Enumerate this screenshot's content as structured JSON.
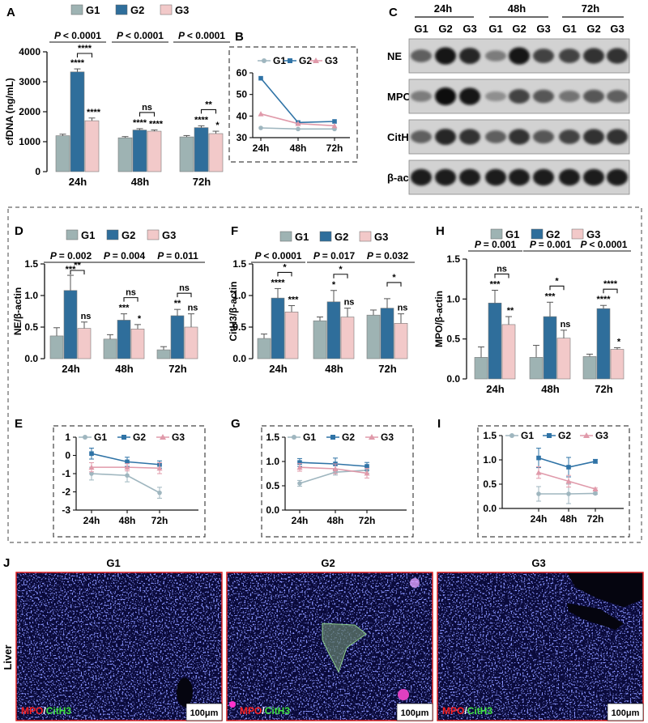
{
  "colors": {
    "G1": "#9eb3b3",
    "G2": "#2f6e9b",
    "G3": "#f2c9c9",
    "G1_line": "#9fb6bf",
    "G2_line": "#2f73a6",
    "G3_line": "#e09aaa",
    "err": "#555555"
  },
  "legend": [
    "G1",
    "G2",
    "G3"
  ],
  "panels": {
    "A": "A",
    "B": "B",
    "C": "C",
    "D": "D",
    "E": "E",
    "F": "F",
    "G": "G",
    "H": "H",
    "I": "I",
    "J": "J"
  },
  "western_blot": {
    "time_headers": [
      "24h",
      "48h",
      "72h"
    ],
    "lane_labels": [
      "G1",
      "G2",
      "G3",
      "G1",
      "G2",
      "G3",
      "G1",
      "G2",
      "G3"
    ],
    "proteins": [
      "NE",
      "MPO",
      "CitH3",
      "β-actin"
    ],
    "intensity": [
      [
        0.55,
        0.95,
        0.85,
        0.4,
        0.95,
        0.7,
        0.7,
        0.8,
        0.8
      ],
      [
        0.4,
        1.0,
        0.95,
        0.3,
        0.7,
        0.6,
        0.45,
        0.6,
        0.55
      ],
      [
        0.55,
        0.85,
        0.8,
        0.55,
        0.8,
        0.6,
        0.7,
        0.8,
        0.8
      ],
      [
        0.9,
        0.9,
        0.9,
        0.9,
        0.9,
        0.9,
        0.9,
        0.9,
        0.9
      ]
    ]
  },
  "micrographs": {
    "side_label": "Liver",
    "titles": [
      "G1",
      "G2",
      "G3"
    ],
    "stain_a": "MPO",
    "stain_sep": "/",
    "stain_b": "CitH3",
    "scale": "100μm"
  },
  "chart_data": [
    {
      "id": "A",
      "type": "bar",
      "ylabel": "cfDNA (ng/mL)",
      "categories": [
        "24h",
        "48h",
        "72h"
      ],
      "ylim": [
        0,
        4000
      ],
      "yticks": [
        0,
        1000,
        2000,
        3000,
        4000
      ],
      "yticklabels": [
        "0",
        "1000",
        "2000",
        "3000",
        "4000"
      ],
      "series": [
        {
          "name": "G1",
          "values": [
            1200,
            1130,
            1160
          ],
          "errors": [
            50,
            40,
            45
          ]
        },
        {
          "name": "G2",
          "values": [
            3330,
            1390,
            1470
          ],
          "errors": [
            100,
            45,
            60
          ]
        },
        {
          "name": "G3",
          "values": [
            1700,
            1350,
            1270
          ],
          "errors": [
            90,
            40,
            80
          ]
        }
      ],
      "pvalues": [
        "< 0.0001",
        "< 0.0001",
        "< 0.0001"
      ],
      "over_g2": [
        "****",
        "****",
        "****"
      ],
      "over_g3": [
        "****",
        "****",
        "*"
      ],
      "bracket": [
        "****",
        "ns",
        "**"
      ]
    },
    {
      "id": "B",
      "type": "line",
      "categories": [
        "24h",
        "48h",
        "72h"
      ],
      "ylim": [
        30,
        60
      ],
      "yticks": [
        30,
        40,
        50,
        60
      ],
      "yticklabels": [
        "30",
        "40",
        "50",
        "60"
      ],
      "series": [
        {
          "name": "G1",
          "values": [
            34.5,
            34,
            34
          ]
        },
        {
          "name": "G2",
          "values": [
            57.5,
            37,
            37.5
          ]
        },
        {
          "name": "G3",
          "values": [
            41,
            36.5,
            35.5
          ]
        }
      ]
    },
    {
      "id": "D",
      "type": "bar",
      "ylabel": "NE/β-actin",
      "categories": [
        "24h",
        "48h",
        "72h"
      ],
      "ylim": [
        0,
        1.5
      ],
      "yticks": [
        0,
        0.5,
        1.0,
        1.5
      ],
      "yticklabels": [
        "0.0",
        "0.5",
        "1.0",
        "1.5"
      ],
      "series": [
        {
          "name": "G1",
          "values": [
            0.36,
            0.31,
            0.14
          ],
          "errors": [
            0.13,
            0.07,
            0.05
          ]
        },
        {
          "name": "G2",
          "values": [
            1.08,
            0.61,
            0.68
          ],
          "errors": [
            0.24,
            0.1,
            0.1
          ]
        },
        {
          "name": "G3",
          "values": [
            0.48,
            0.47,
            0.5
          ],
          "errors": [
            0.1,
            0.07,
            0.21
          ]
        }
      ],
      "pvalues": [
        "= 0.002",
        "= 0.004",
        "= 0.011"
      ],
      "over_g2": [
        "***",
        "***",
        "**"
      ],
      "over_g3": [
        "ns",
        "*",
        "ns"
      ],
      "bracket": [
        "**",
        "ns",
        "ns"
      ]
    },
    {
      "id": "F",
      "type": "bar",
      "ylabel": "CitH3/β-actin",
      "categories": [
        "24h",
        "48h",
        "72h"
      ],
      "ylim": [
        0,
        1.5
      ],
      "yticks": [
        0,
        0.5,
        1.0,
        1.5
      ],
      "yticklabels": [
        "0.0",
        "0.5",
        "1.0",
        "1.5"
      ],
      "series": [
        {
          "name": "G1",
          "values": [
            0.32,
            0.6,
            0.69
          ],
          "errors": [
            0.07,
            0.06,
            0.08
          ]
        },
        {
          "name": "G2",
          "values": [
            0.96,
            0.9,
            0.8
          ],
          "errors": [
            0.15,
            0.18,
            0.15
          ]
        },
        {
          "name": "G3",
          "values": [
            0.74,
            0.66,
            0.56
          ],
          "errors": [
            0.1,
            0.14,
            0.15
          ]
        }
      ],
      "pvalues": [
        "< 0.0001",
        "= 0.017",
        "= 0.032"
      ],
      "over_g2": [
        "****",
        "*",
        ""
      ],
      "over_g3": [
        "***",
        "ns",
        "ns"
      ],
      "bracket": [
        "*",
        "*",
        "*"
      ]
    },
    {
      "id": "H",
      "type": "bar",
      "ylabel": "MPO/β-actin",
      "categories": [
        "24h",
        "48h",
        "72h"
      ],
      "ylim": [
        0,
        1.5
      ],
      "yticks": [
        0,
        0.5,
        1.0,
        1.5
      ],
      "yticklabels": [
        "0.0",
        "0.5",
        "1.0",
        "1.5"
      ],
      "series": [
        {
          "name": "G1",
          "values": [
            0.27,
            0.27,
            0.28
          ],
          "errors": [
            0.13,
            0.15,
            0.03
          ]
        },
        {
          "name": "G2",
          "values": [
            0.95,
            0.78,
            0.88
          ],
          "errors": [
            0.16,
            0.18,
            0.04
          ]
        },
        {
          "name": "G3",
          "values": [
            0.68,
            0.51,
            0.37
          ],
          "errors": [
            0.1,
            0.1,
            0.02
          ]
        }
      ],
      "pvalues": [
        "= 0.001",
        "= 0.001",
        "< 0.0001"
      ],
      "over_g2": [
        "***",
        "***",
        "****"
      ],
      "over_g3": [
        "**",
        "ns",
        "*"
      ],
      "bracket": [
        "ns",
        "*",
        "****"
      ]
    },
    {
      "id": "E",
      "type": "line",
      "categories": [
        "24h",
        "48h",
        "72h"
      ],
      "ylim": [
        -3,
        1
      ],
      "yticks": [
        -3,
        -2,
        -1,
        0,
        1
      ],
      "yticklabels": [
        "-3",
        "-2",
        "-1",
        "0",
        "1"
      ],
      "series": [
        {
          "name": "G1",
          "values": [
            -1.0,
            -1.1,
            -2.05
          ],
          "errors": [
            0.35,
            0.35,
            0.3
          ]
        },
        {
          "name": "G2",
          "values": [
            0.1,
            -0.35,
            -0.5
          ],
          "errors": [
            0.3,
            0.25,
            0.2
          ]
        },
        {
          "name": "G3",
          "values": [
            -0.65,
            -0.65,
            -0.7
          ],
          "errors": [
            0.25,
            0.2,
            0.3
          ]
        }
      ]
    },
    {
      "id": "G",
      "type": "line",
      "categories": [
        "24h",
        "48h",
        "72h"
      ],
      "ylim": [
        0,
        1.5
      ],
      "yticks": [
        0,
        0.5,
        1.0,
        1.5
      ],
      "yticklabels": [
        "0.0",
        "0.5",
        "1.0",
        "1.5"
      ],
      "series": [
        {
          "name": "G1",
          "values": [
            0.55,
            0.78,
            0.82
          ],
          "errors": [
            0.06,
            0.06,
            0.06
          ]
        },
        {
          "name": "G2",
          "values": [
            0.98,
            0.95,
            0.9
          ],
          "errors": [
            0.08,
            0.12,
            0.08
          ]
        },
        {
          "name": "G3",
          "values": [
            0.88,
            0.85,
            0.76
          ],
          "errors": [
            0.08,
            0.1,
            0.1
          ]
        }
      ]
    },
    {
      "id": "I",
      "type": "line",
      "categories": [
        "24h",
        "48h",
        "72h"
      ],
      "ylim": [
        0,
        1.5
      ],
      "yticks": [
        0,
        0.5,
        1.0,
        1.5
      ],
      "yticklabels": [
        "0.0",
        "0.5",
        "1.0",
        "1.5"
      ],
      "series": [
        {
          "name": "G1",
          "values": [
            0.3,
            0.3,
            0.31
          ],
          "errors": [
            0.15,
            0.2,
            0.02
          ]
        },
        {
          "name": "G2",
          "values": [
            1.04,
            0.85,
            0.97
          ],
          "errors": [
            0.2,
            0.2,
            0.04
          ]
        },
        {
          "name": "G3",
          "values": [
            0.74,
            0.56,
            0.4
          ],
          "errors": [
            0.12,
            0.12,
            0.02
          ]
        }
      ]
    }
  ]
}
